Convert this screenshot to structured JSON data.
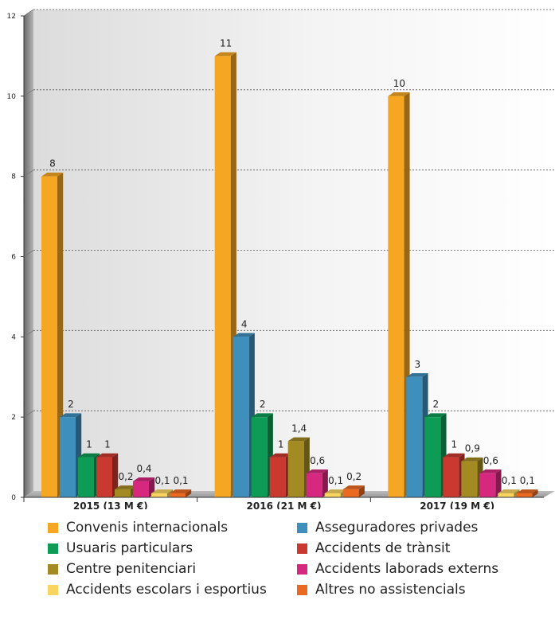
{
  "chart_data": {
    "type": "bar",
    "title": "",
    "xlabel": "",
    "ylabel": "",
    "ylim": [
      0,
      12
    ],
    "yticks": [
      0,
      2,
      4,
      6,
      8,
      10,
      12
    ],
    "grid": true,
    "legend_position": "bottom",
    "categories": [
      "2015 (13 M €)",
      "2016 (21 M €)",
      "2017 (19 M €)"
    ],
    "series": [
      {
        "name": "Convenis internacionals",
        "color": "#f5a623",
        "values": [
          8,
          11,
          10
        ],
        "labels": [
          "8",
          "11",
          "10"
        ]
      },
      {
        "name": "Asseguradores privades",
        "color": "#3f8fbd",
        "values": [
          2,
          4,
          3
        ],
        "labels": [
          "2",
          "4",
          "3"
        ]
      },
      {
        "name": "Usuaris particulars",
        "color": "#0e9b55",
        "values": [
          1,
          2,
          2
        ],
        "labels": [
          "1",
          "2",
          "2"
        ]
      },
      {
        "name": "Accidents de trànsit",
        "color": "#c9392f",
        "values": [
          1,
          1,
          1
        ],
        "labels": [
          "1",
          "1",
          "1"
        ]
      },
      {
        "name": "Centre penitenciari",
        "color": "#a38a22",
        "values": [
          0.2,
          1.4,
          0.9
        ],
        "labels": [
          "0,2",
          "1,4",
          "0,9"
        ]
      },
      {
        "name": "Accidents laborads externs",
        "color": "#d6287e",
        "values": [
          0.4,
          0.6,
          0.6
        ],
        "labels": [
          "0,4",
          "0,6",
          "0,6"
        ]
      },
      {
        "name": "Accidents escolars i esportius",
        "color": "#f7d560",
        "values": [
          0.1,
          0.1,
          0.1
        ],
        "labels": [
          "0,1",
          "0,1",
          "0,1"
        ]
      },
      {
        "name": "Altres no assistencials",
        "color": "#ea6a22",
        "values": [
          0.1,
          0.2,
          0.1
        ],
        "labels": [
          "0,1",
          "0,2",
          "0,1"
        ]
      }
    ]
  }
}
